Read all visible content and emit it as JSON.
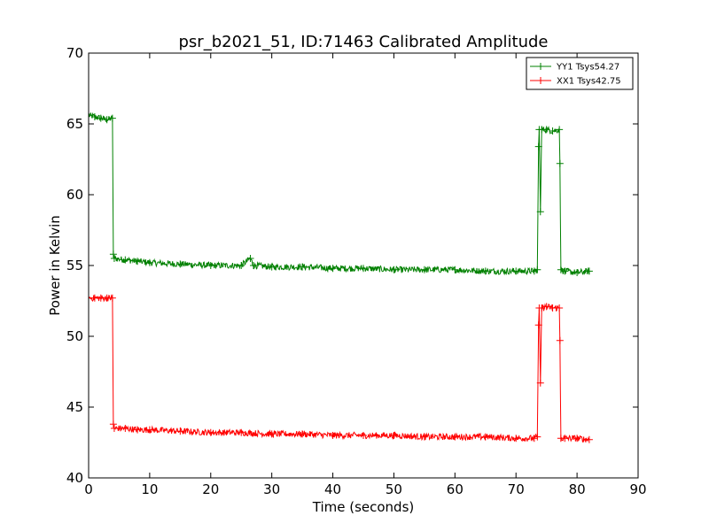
{
  "chart_data": {
    "type": "line",
    "title": "psr_b2021_51, ID:71463 Calibrated Amplitude",
    "xlabel": "Time (seconds)",
    "ylabel": "Power in Kelvin",
    "xlim": [
      0,
      90
    ],
    "ylim": [
      40,
      70
    ],
    "xticks": [
      "0",
      "10",
      "20",
      "30",
      "40",
      "50",
      "60",
      "70",
      "80",
      "90"
    ],
    "yticks": [
      "40",
      "45",
      "50",
      "55",
      "60",
      "65",
      "70"
    ],
    "grid": false,
    "legend_position": "top-right",
    "series": [
      {
        "name": "YY1 Tsys54.27",
        "color": "#008000",
        "marker": "+",
        "points": [
          [
            0,
            65.6
          ],
          [
            1,
            65.5
          ],
          [
            2,
            65.4
          ],
          [
            3,
            65.3
          ],
          [
            3.9,
            65.4
          ],
          [
            4.05,
            55.8
          ],
          [
            4.2,
            55.5
          ],
          [
            6,
            55.4
          ],
          [
            8,
            55.3
          ],
          [
            10,
            55.2
          ],
          [
            15,
            55.1
          ],
          [
            20,
            55.0
          ],
          [
            25,
            55.0
          ],
          [
            26.5,
            55.5
          ],
          [
            27,
            55.0
          ],
          [
            30,
            54.9
          ],
          [
            35,
            54.9
          ],
          [
            40,
            54.8
          ],
          [
            45,
            54.8
          ],
          [
            50,
            54.7
          ],
          [
            55,
            54.7
          ],
          [
            60,
            54.7
          ],
          [
            65,
            54.6
          ],
          [
            70,
            54.6
          ],
          [
            73,
            54.6
          ],
          [
            73.5,
            54.7
          ],
          [
            73.7,
            63.4
          ],
          [
            73.8,
            64.6
          ],
          [
            74.0,
            58.8
          ],
          [
            74.2,
            64.6
          ],
          [
            75,
            64.6
          ],
          [
            76,
            64.5
          ],
          [
            77.1,
            64.6
          ],
          [
            77.2,
            62.2
          ],
          [
            77.35,
            54.7
          ],
          [
            78,
            54.6
          ],
          [
            80,
            54.5
          ],
          [
            82,
            54.6
          ]
        ]
      },
      {
        "name": "XX1 Tsys42.75",
        "color": "#ff0000",
        "marker": "+",
        "points": [
          [
            0,
            52.7
          ],
          [
            1,
            52.7
          ],
          [
            2,
            52.7
          ],
          [
            3,
            52.7
          ],
          [
            3.9,
            52.7
          ],
          [
            4.05,
            43.8
          ],
          [
            4.2,
            43.5
          ],
          [
            6,
            43.5
          ],
          [
            8,
            43.4
          ],
          [
            10,
            43.4
          ],
          [
            15,
            43.3
          ],
          [
            20,
            43.2
          ],
          [
            25,
            43.2
          ],
          [
            30,
            43.1
          ],
          [
            35,
            43.1
          ],
          [
            40,
            43.0
          ],
          [
            45,
            43.0
          ],
          [
            50,
            43.0
          ],
          [
            55,
            42.9
          ],
          [
            60,
            42.9
          ],
          [
            65,
            42.9
          ],
          [
            70,
            42.8
          ],
          [
            73,
            42.8
          ],
          [
            73.5,
            42.9
          ],
          [
            73.7,
            50.8
          ],
          [
            73.8,
            52.0
          ],
          [
            74.0,
            46.7
          ],
          [
            74.2,
            52.0
          ],
          [
            75,
            52.1
          ],
          [
            76,
            52.0
          ],
          [
            77.1,
            52.0
          ],
          [
            77.2,
            49.7
          ],
          [
            77.35,
            42.8
          ],
          [
            78,
            42.8
          ],
          [
            80,
            42.8
          ],
          [
            82,
            42.7
          ]
        ]
      }
    ]
  }
}
